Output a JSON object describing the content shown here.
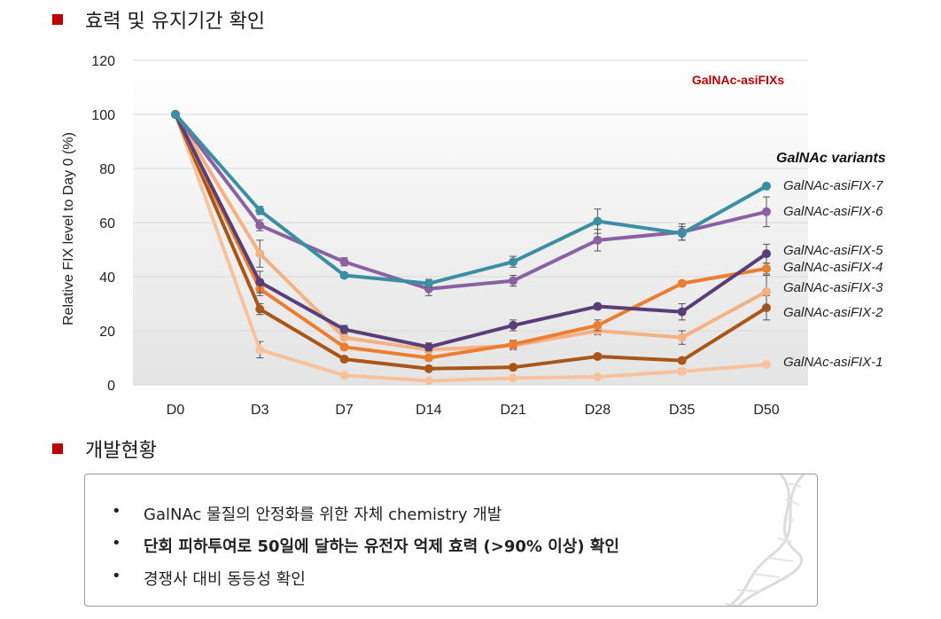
{
  "section1": {
    "title": "효력 및 유지기간 확인"
  },
  "section2": {
    "title": "개발현황"
  },
  "chart_data": {
    "type": "line",
    "title": "",
    "ylabel": "Relative FIX level to Day 0 (%)",
    "xlabel": "",
    "ylim": [
      0,
      120
    ],
    "yticks": [
      0,
      20,
      40,
      60,
      80,
      100,
      120
    ],
    "categories": [
      "D0",
      "D3",
      "D7",
      "D14",
      "D21",
      "D28",
      "D35",
      "D50"
    ],
    "annotation": "GalNAc-asiFIXs",
    "legend_title": "GalNAc variants",
    "grid": true,
    "legend_placement": "right",
    "series": [
      {
        "name": "GalNAc-asiFIX-7",
        "color": "#3a8fa3",
        "values": [
          100,
          64.5,
          40.5,
          37.5,
          45.5,
          60.5,
          56,
          73.5
        ],
        "errors": [
          0,
          1.5,
          1,
          1.5,
          2,
          4.5,
          2.5,
          1
        ]
      },
      {
        "name": "GalNAc-asiFIX-6",
        "color": "#8a62a4",
        "values": [
          100,
          59,
          45.5,
          35.5,
          38.5,
          53.5,
          56.5,
          64
        ],
        "errors": [
          0,
          2,
          1.5,
          2.5,
          2,
          4,
          3,
          5.5
        ]
      },
      {
        "name": "GalNAc-asiFIX-5",
        "color": "#5a3e78",
        "values": [
          100,
          38,
          20.5,
          14,
          22,
          29,
          27,
          48.5
        ],
        "errors": [
          0,
          4,
          1.5,
          1.5,
          2,
          1,
          3,
          3.5
        ]
      },
      {
        "name": "GalNAc-asiFIX-4",
        "color": "#ed7d31",
        "values": [
          100,
          35.5,
          14,
          10,
          15,
          22,
          37.5,
          43
        ],
        "errors": [
          0,
          2.5,
          1,
          1,
          1.5,
          2,
          1,
          2
        ]
      },
      {
        "name": "GalNAc-asiFIX-3",
        "color": "#f4b183",
        "values": [
          100,
          48.5,
          17.5,
          13,
          14.5,
          20,
          17.5,
          34.5
        ],
        "errors": [
          0,
          5,
          1,
          1,
          1.5,
          1.5,
          2.5,
          6
        ]
      },
      {
        "name": "GalNAc-asiFIX-2",
        "color": "#a9561b",
        "values": [
          100,
          28,
          9.5,
          6,
          6.5,
          10.5,
          9,
          28.5
        ],
        "errors": [
          0,
          2,
          1,
          0.5,
          1,
          1,
          1,
          4.5
        ]
      },
      {
        "name": "GalNAc-asiFIX-1",
        "color": "#f8c39c",
        "values": [
          100,
          13,
          3.5,
          1.5,
          2.5,
          3,
          5,
          7.5
        ],
        "errors": [
          0,
          3,
          0.5,
          0.5,
          0.5,
          0.5,
          1,
          0.5
        ]
      }
    ]
  },
  "bullets": [
    {
      "marker": "•",
      "text": "GalNAc 물질의 안정화를 위한 자체 chemistry 개발",
      "bold": false
    },
    {
      "marker": "•",
      "text": "단회 피하투여로 50일에 달하는 유전자 억제 효력 (>90% 이상) 확인",
      "bold": true
    },
    {
      "marker": "•",
      "text": "경쟁사 대비 동등성 확인",
      "bold": false
    }
  ],
  "colors": {
    "accent": "#c00000",
    "annotation": "#c00000"
  }
}
